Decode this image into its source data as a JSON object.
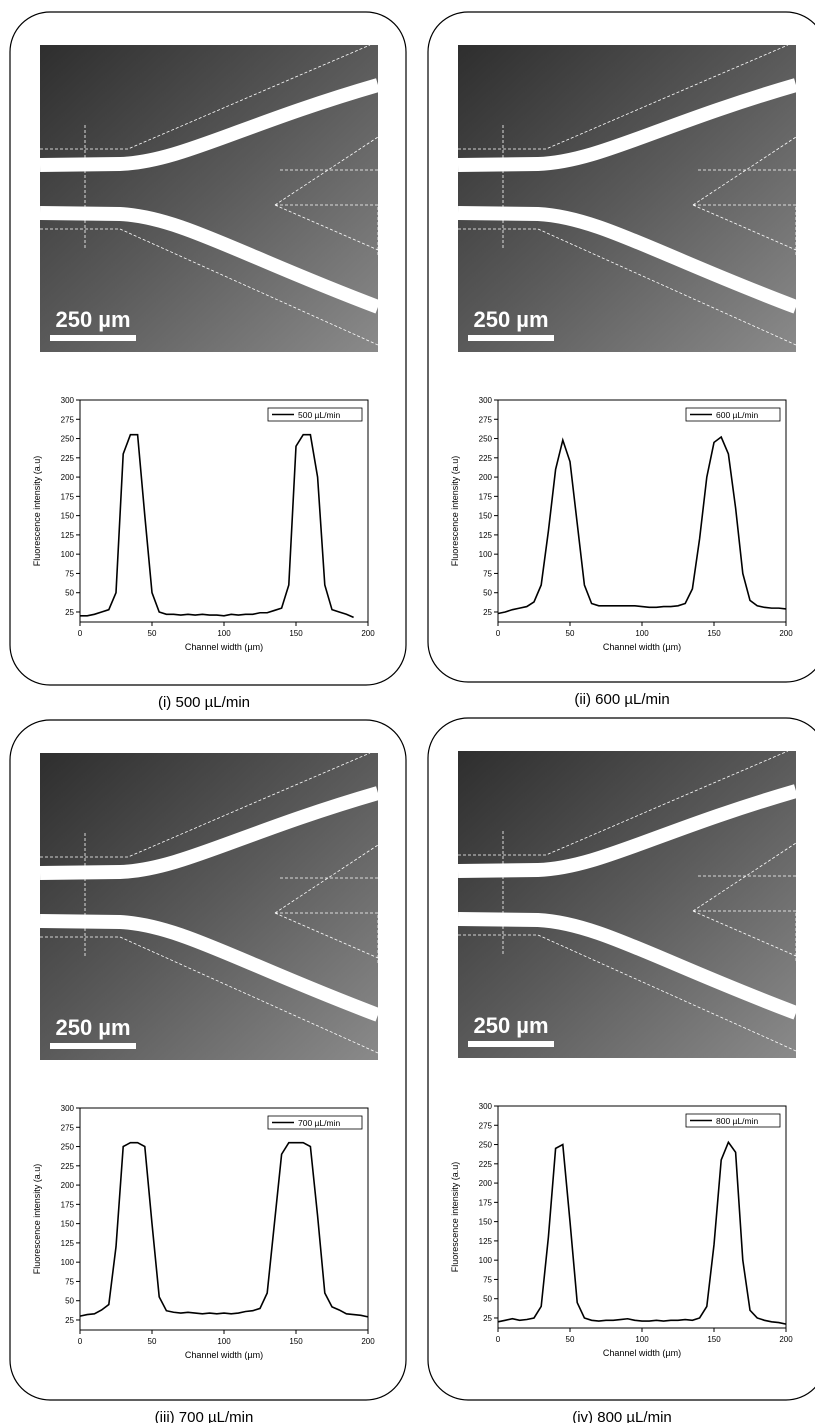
{
  "chart_data": [
    {
      "type": "line",
      "caption": "(i) 500 µL/min",
      "scale_bar_label": "250 µm",
      "xlabel": "Channel width (µm)",
      "ylabel": "Fluorescence intensity (a.u)",
      "xlim": [
        0,
        200
      ],
      "ylim": [
        12,
        300
      ],
      "xticks": [
        0,
        50,
        100,
        150,
        200
      ],
      "yticks": [
        25,
        50,
        75,
        100,
        125,
        150,
        175,
        200,
        225,
        250,
        275,
        300
      ],
      "legend": "upper right",
      "x": [
        0,
        5,
        10,
        15,
        20,
        25,
        30,
        35,
        40,
        45,
        50,
        55,
        60,
        65,
        70,
        75,
        80,
        85,
        90,
        95,
        100,
        105,
        110,
        115,
        120,
        125,
        130,
        135,
        140,
        145,
        150,
        155,
        160,
        165,
        170,
        175,
        180,
        185,
        190
      ],
      "series": [
        {
          "name": "500 µL/min",
          "color": "#000000",
          "values": [
            20,
            20,
            22,
            25,
            28,
            50,
            230,
            255,
            255,
            150,
            50,
            25,
            22,
            22,
            21,
            22,
            21,
            22,
            21,
            21,
            20,
            22,
            21,
            22,
            22,
            24,
            24,
            27,
            30,
            60,
            240,
            255,
            255,
            200,
            60,
            28,
            25,
            22,
            18
          ]
        }
      ]
    },
    {
      "type": "line",
      "caption": "(ii) 600 µL/min",
      "scale_bar_label": "250 µm",
      "xlabel": "Channel width (µm)",
      "ylabel": "Fluorescence intensity (a.u)",
      "xlim": [
        0,
        200
      ],
      "ylim": [
        12,
        300
      ],
      "xticks": [
        0,
        50,
        100,
        150,
        200
      ],
      "yticks": [
        25,
        50,
        75,
        100,
        125,
        150,
        175,
        200,
        225,
        250,
        275,
        300
      ],
      "legend": "upper right",
      "x": [
        0,
        5,
        10,
        15,
        20,
        25,
        30,
        35,
        40,
        45,
        50,
        55,
        60,
        65,
        70,
        75,
        80,
        85,
        90,
        95,
        100,
        105,
        110,
        115,
        120,
        125,
        130,
        135,
        140,
        145,
        150,
        155,
        160,
        165,
        170,
        175,
        180,
        185,
        190,
        195,
        200
      ],
      "series": [
        {
          "name": "600 µL/min",
          "color": "#000000",
          "values": [
            23,
            25,
            28,
            30,
            32,
            38,
            60,
            130,
            210,
            248,
            220,
            140,
            60,
            36,
            33,
            33,
            33,
            33,
            33,
            33,
            32,
            31,
            31,
            32,
            32,
            33,
            36,
            55,
            120,
            200,
            245,
            252,
            230,
            160,
            75,
            40,
            33,
            31,
            30,
            30,
            29
          ]
        }
      ]
    },
    {
      "type": "line",
      "caption": "(iii) 700 µL/min",
      "scale_bar_label": "250 µm",
      "xlabel": "Channel width (µm)",
      "ylabel": "Fluorescence intensity (a.u)",
      "xlim": [
        0,
        200
      ],
      "ylim": [
        12,
        300
      ],
      "xticks": [
        0,
        50,
        100,
        150,
        200
      ],
      "yticks": [
        25,
        50,
        75,
        100,
        125,
        150,
        175,
        200,
        225,
        250,
        275,
        300
      ],
      "legend": "upper right",
      "x": [
        0,
        5,
        10,
        15,
        20,
        25,
        30,
        35,
        40,
        45,
        50,
        55,
        60,
        65,
        70,
        75,
        80,
        85,
        90,
        95,
        100,
        105,
        110,
        115,
        120,
        125,
        130,
        135,
        140,
        145,
        150,
        155,
        160,
        165,
        170,
        175,
        180,
        185,
        190,
        195,
        200
      ],
      "series": [
        {
          "name": "700 µL/min",
          "color": "#000000",
          "values": [
            30,
            32,
            33,
            38,
            45,
            120,
            250,
            255,
            255,
            250,
            150,
            55,
            37,
            35,
            34,
            35,
            34,
            33,
            34,
            33,
            34,
            33,
            34,
            36,
            37,
            40,
            60,
            150,
            240,
            255,
            255,
            255,
            250,
            160,
            60,
            42,
            38,
            33,
            32,
            31,
            29
          ]
        }
      ]
    },
    {
      "type": "line",
      "caption": "(iv) 800 µL/min",
      "scale_bar_label": "250 µm",
      "xlabel": "Channel width (µm)",
      "ylabel": "Fluorescence intensity (a.u)",
      "xlim": [
        0,
        200
      ],
      "ylim": [
        12,
        300
      ],
      "xticks": [
        0,
        50,
        100,
        150,
        200
      ],
      "yticks": [
        25,
        50,
        75,
        100,
        125,
        150,
        175,
        200,
        225,
        250,
        275,
        300
      ],
      "legend": "upper right",
      "x": [
        0,
        5,
        10,
        15,
        20,
        25,
        30,
        35,
        40,
        45,
        50,
        55,
        60,
        65,
        70,
        75,
        80,
        85,
        90,
        95,
        100,
        105,
        110,
        115,
        120,
        125,
        130,
        135,
        140,
        145,
        150,
        155,
        160,
        165,
        170,
        175,
        180,
        185,
        190,
        195,
        200
      ],
      "series": [
        {
          "name": "800 µL/min",
          "color": "#000000",
          "values": [
            20,
            22,
            24,
            22,
            23,
            25,
            40,
            130,
            245,
            250,
            150,
            45,
            25,
            22,
            21,
            22,
            22,
            23,
            24,
            22,
            21,
            21,
            22,
            21,
            22,
            22,
            23,
            22,
            25,
            40,
            120,
            230,
            253,
            240,
            100,
            35,
            25,
            22,
            20,
            19,
            17
          ]
        }
      ]
    }
  ]
}
